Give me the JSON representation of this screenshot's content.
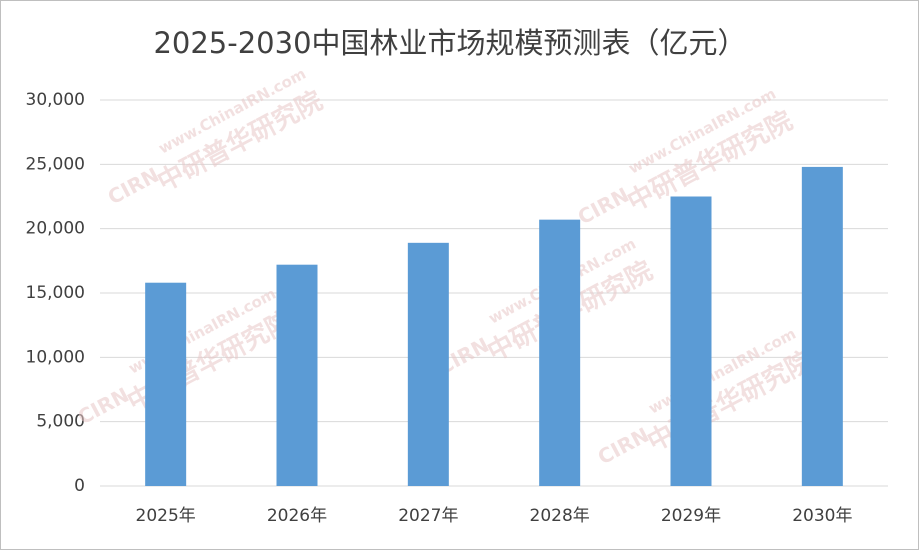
{
  "chart_data": {
    "type": "bar",
    "title": "2025-2030中国林业市场规模预测表（亿元）",
    "categories": [
      "2025年",
      "2026年",
      "2027年",
      "2028年",
      "2029年",
      "2030年"
    ],
    "values": [
      15800,
      17200,
      18900,
      20700,
      22500,
      24800
    ],
    "color": "#5b9bd5",
    "ylim": [
      0,
      30000
    ],
    "yticks": [
      0,
      {
        "value": 5000,
        "label": "5,000"
      },
      {
        "value": 10000,
        "label": "10,000"
      },
      {
        "value": 15000,
        "label": "15,000"
      },
      {
        "value": 20000,
        "label": "20,000"
      },
      {
        "value": 25000,
        "label": "25,000"
      },
      {
        "value": 30000,
        "label": "30,000"
      }
    ],
    "grid": true
  },
  "watermark": {
    "site": "www.ChinaIRN.com",
    "name": "中研普华研究院",
    "logo": "CIRN"
  }
}
